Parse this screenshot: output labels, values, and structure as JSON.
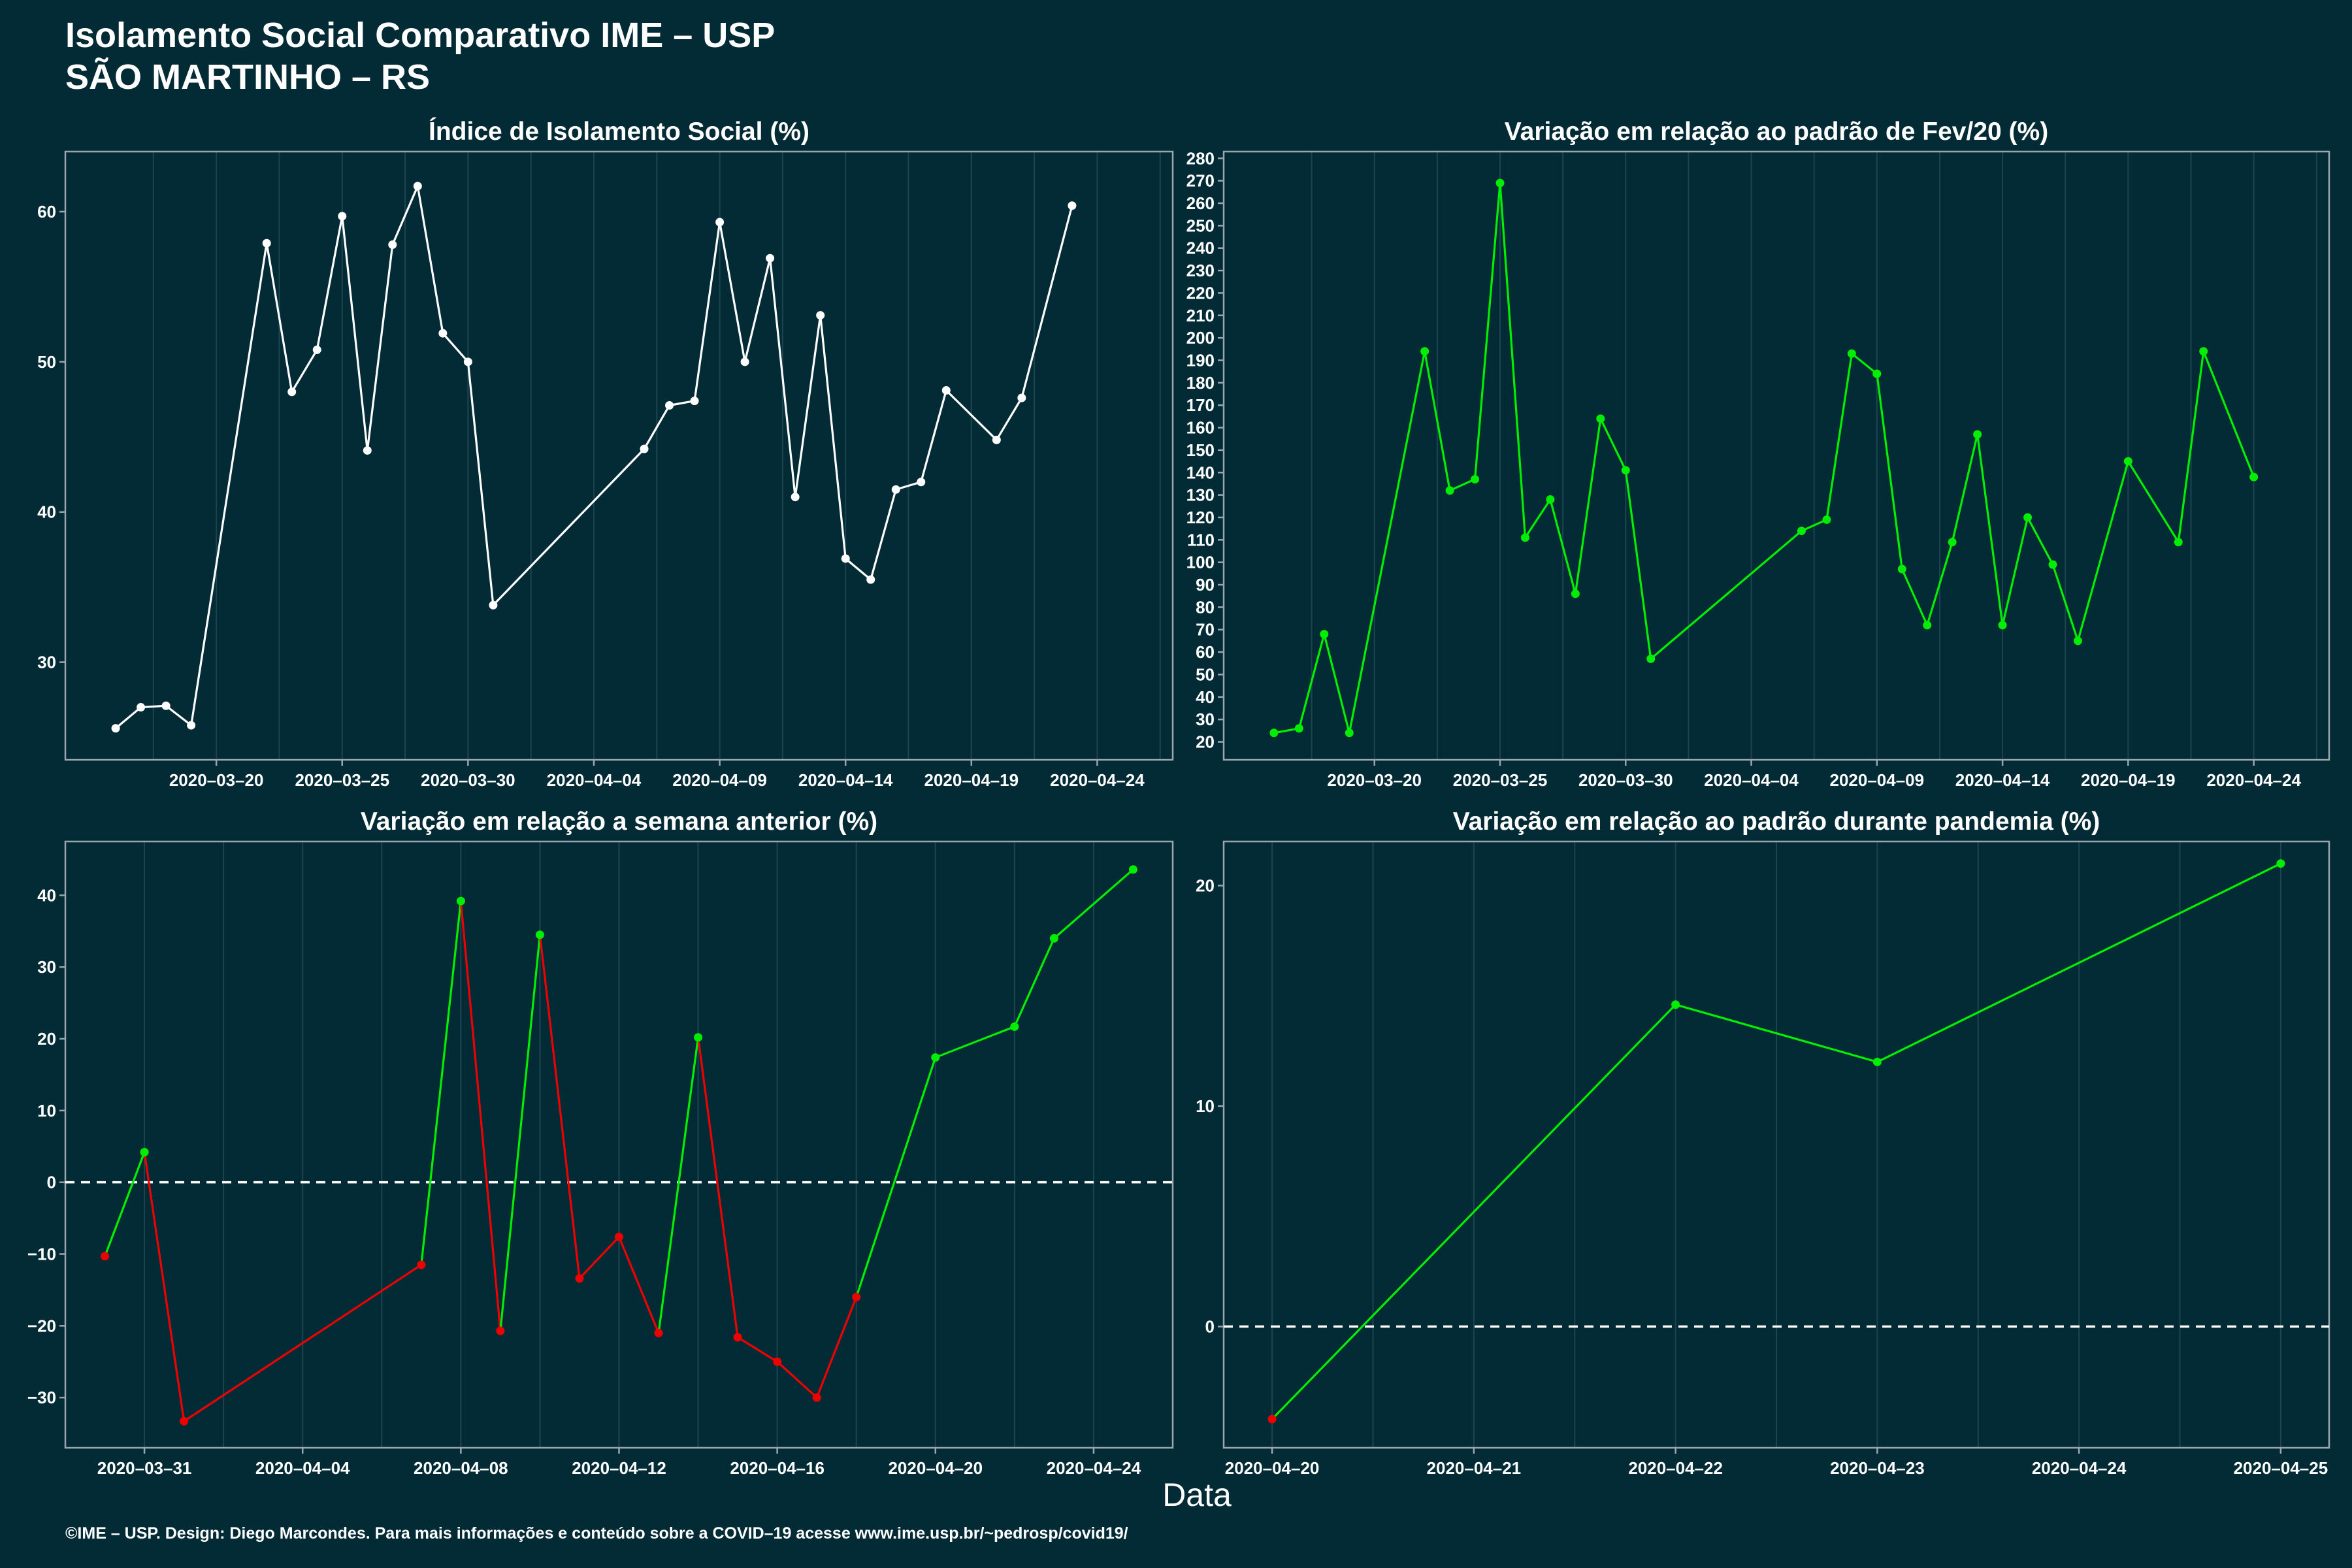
{
  "header": {
    "title_line1": "Isolamento Social Comparativo IME – USP",
    "title_line2": "SÃO MARTINHO – RS"
  },
  "xlabel": "Data",
  "footer": "©IME – USP. Design: Diego Marcondes. Para mais informações e conteúdo sobre a COVID–19 acesse www.ime.usp.br/~pedrosp/covid19/",
  "colors": {
    "background": "#022b36",
    "white": "#ffffff",
    "green": "#00ee00",
    "red": "#ee0000"
  },
  "chart_data": [
    {
      "type": "line",
      "title": "Índice de Isolamento Social (%)",
      "xlim": [
        "2020-03-14",
        "2020-04-27"
      ],
      "ylim": [
        23.5,
        64
      ],
      "yticks": [
        30,
        40,
        50,
        60
      ],
      "xticks": [
        "2020-03-20",
        "2020-03-25",
        "2020-03-30",
        "2020-04-04",
        "2020-04-09",
        "2020-04-14",
        "2020-04-19",
        "2020-04-24"
      ],
      "zero_line": false,
      "points": [
        {
          "x": "2020-03-16",
          "y": 25.6,
          "c": "white"
        },
        {
          "x": "2020-03-17",
          "y": 27.0,
          "c": "white"
        },
        {
          "x": "2020-03-18",
          "y": 27.1,
          "c": "white"
        },
        {
          "x": "2020-03-19",
          "y": 25.8,
          "c": "white"
        },
        {
          "x": "2020-03-22",
          "y": 57.9,
          "c": "white"
        },
        {
          "x": "2020-03-23",
          "y": 48.0,
          "c": "white"
        },
        {
          "x": "2020-03-24",
          "y": 50.8,
          "c": "white"
        },
        {
          "x": "2020-03-25",
          "y": 59.7,
          "c": "white"
        },
        {
          "x": "2020-03-26",
          "y": 44.1,
          "c": "white"
        },
        {
          "x": "2020-03-27",
          "y": 57.8,
          "c": "white"
        },
        {
          "x": "2020-03-28",
          "y": 61.7,
          "c": "white"
        },
        {
          "x": "2020-03-29",
          "y": 51.9,
          "c": "white"
        },
        {
          "x": "2020-03-30",
          "y": 50.0,
          "c": "white"
        },
        {
          "x": "2020-03-31",
          "y": 33.8,
          "c": "white"
        },
        {
          "x": "2020-04-06",
          "y": 44.2,
          "c": "white"
        },
        {
          "x": "2020-04-07",
          "y": 47.1,
          "c": "white"
        },
        {
          "x": "2020-04-08",
          "y": 47.4,
          "c": "white"
        },
        {
          "x": "2020-04-09",
          "y": 59.3,
          "c": "white"
        },
        {
          "x": "2020-04-10",
          "y": 50.0,
          "c": "white"
        },
        {
          "x": "2020-04-11",
          "y": 56.9,
          "c": "white"
        },
        {
          "x": "2020-04-12",
          "y": 41.0,
          "c": "white"
        },
        {
          "x": "2020-04-13",
          "y": 53.1,
          "c": "white"
        },
        {
          "x": "2020-04-14",
          "y": 36.9,
          "c": "white"
        },
        {
          "x": "2020-04-15",
          "y": 35.5,
          "c": "white"
        },
        {
          "x": "2020-04-16",
          "y": 41.5,
          "c": "white"
        },
        {
          "x": "2020-04-17",
          "y": 42.0,
          "c": "white"
        },
        {
          "x": "2020-04-18",
          "y": 48.1,
          "c": "white"
        },
        {
          "x": "2020-04-20",
          "y": 44.8,
          "c": "white"
        },
        {
          "x": "2020-04-21",
          "y": 47.6,
          "c": "white"
        },
        {
          "x": "2020-04-23",
          "y": 60.4,
          "c": "white"
        }
      ]
    },
    {
      "type": "line",
      "title": "Variação em relação ao padrão de Fev/20 (%)",
      "xlim": [
        "2020-03-14",
        "2020-04-27"
      ],
      "ylim": [
        12,
        283
      ],
      "yticks": [
        20,
        30,
        40,
        50,
        60,
        70,
        80,
        90,
        100,
        110,
        120,
        130,
        140,
        150,
        160,
        170,
        180,
        190,
        200,
        210,
        220,
        230,
        240,
        250,
        260,
        270,
        280
      ],
      "xticks": [
        "2020-03-20",
        "2020-03-25",
        "2020-03-30",
        "2020-04-04",
        "2020-04-09",
        "2020-04-14",
        "2020-04-19",
        "2020-04-24"
      ],
      "zero_line": false,
      "points": [
        {
          "x": "2020-03-16",
          "y": 24,
          "c": "green"
        },
        {
          "x": "2020-03-17",
          "y": 26,
          "c": "green"
        },
        {
          "x": "2020-03-18",
          "y": 68,
          "c": "green"
        },
        {
          "x": "2020-03-19",
          "y": 24,
          "c": "green"
        },
        {
          "x": "2020-03-22",
          "y": 194,
          "c": "green"
        },
        {
          "x": "2020-03-23",
          "y": 132,
          "c": "green"
        },
        {
          "x": "2020-03-24",
          "y": 137,
          "c": "green"
        },
        {
          "x": "2020-03-25",
          "y": 269,
          "c": "green"
        },
        {
          "x": "2020-03-26",
          "y": 111,
          "c": "green"
        },
        {
          "x": "2020-03-27",
          "y": 128,
          "c": "green"
        },
        {
          "x": "2020-03-28",
          "y": 86,
          "c": "green"
        },
        {
          "x": "2020-03-29",
          "y": 164,
          "c": "green"
        },
        {
          "x": "2020-03-30",
          "y": 141,
          "c": "green"
        },
        {
          "x": "2020-03-31",
          "y": 57,
          "c": "green"
        },
        {
          "x": "2020-04-06",
          "y": 114,
          "c": "green"
        },
        {
          "x": "2020-04-07",
          "y": 119,
          "c": "green"
        },
        {
          "x": "2020-04-08",
          "y": 193,
          "c": "green"
        },
        {
          "x": "2020-04-09",
          "y": 184,
          "c": "green"
        },
        {
          "x": "2020-04-10",
          "y": 97,
          "c": "green"
        },
        {
          "x": "2020-04-11",
          "y": 72,
          "c": "green"
        },
        {
          "x": "2020-04-12",
          "y": 109,
          "c": "green"
        },
        {
          "x": "2020-04-13",
          "y": 157,
          "c": "green"
        },
        {
          "x": "2020-04-14",
          "y": 72,
          "c": "green"
        },
        {
          "x": "2020-04-15",
          "y": 120,
          "c": "green"
        },
        {
          "x": "2020-04-16",
          "y": 99,
          "c": "green"
        },
        {
          "x": "2020-04-17",
          "y": 65,
          "c": "green"
        },
        {
          "x": "2020-04-19",
          "y": 145,
          "c": "green"
        },
        {
          "x": "2020-04-21",
          "y": 109,
          "c": "green"
        },
        {
          "x": "2020-04-22",
          "y": 194,
          "c": "green"
        },
        {
          "x": "2020-04-24",
          "y": 138,
          "c": "green"
        }
      ]
    },
    {
      "type": "line",
      "title": "Variação em relação a semana anterior (%)",
      "xlim": [
        "2020-03-29",
        "2020-04-26"
      ],
      "ylim": [
        -37,
        47.5
      ],
      "yticks": [
        -30,
        -20,
        -10,
        0,
        10,
        20,
        30,
        40
      ],
      "xticks": [
        "2020-03-31",
        "2020-04-04",
        "2020-04-08",
        "2020-04-12",
        "2020-04-16",
        "2020-04-20",
        "2020-04-24"
      ],
      "zero_line": true,
      "points": [
        {
          "x": "2020-03-30",
          "y": -10.3,
          "c": "red"
        },
        {
          "x": "2020-03-31",
          "y": 4.2,
          "c": "green"
        },
        {
          "x": "2020-04-01",
          "y": -33.3,
          "c": "red"
        },
        {
          "x": "2020-04-07",
          "y": -11.5,
          "c": "red"
        },
        {
          "x": "2020-04-08",
          "y": 39.2,
          "c": "green"
        },
        {
          "x": "2020-04-09",
          "y": -20.7,
          "c": "red"
        },
        {
          "x": "2020-04-10",
          "y": 34.5,
          "c": "green"
        },
        {
          "x": "2020-04-11",
          "y": -13.4,
          "c": "red"
        },
        {
          "x": "2020-04-12",
          "y": -7.6,
          "c": "red"
        },
        {
          "x": "2020-04-13",
          "y": -21.0,
          "c": "red"
        },
        {
          "x": "2020-04-14",
          "y": 20.2,
          "c": "green"
        },
        {
          "x": "2020-04-15",
          "y": -21.6,
          "c": "red"
        },
        {
          "x": "2020-04-16",
          "y": -25.0,
          "c": "red"
        },
        {
          "x": "2020-04-17",
          "y": -30.0,
          "c": "red"
        },
        {
          "x": "2020-04-18",
          "y": -16.0,
          "c": "red"
        },
        {
          "x": "2020-04-20",
          "y": 17.4,
          "c": "green"
        },
        {
          "x": "2020-04-22",
          "y": 21.7,
          "c": "green"
        },
        {
          "x": "2020-04-23",
          "y": 34.0,
          "c": "green"
        },
        {
          "x": "2020-04-25",
          "y": 43.6,
          "c": "green"
        }
      ]
    },
    {
      "type": "line",
      "title": "Variação em relação ao padrão durante pandemia (%)",
      "xlim": [
        "2020-04-19.76",
        "2020-04-25.24"
      ],
      "ylim": [
        -5.5,
        22
      ],
      "yticks": [
        0,
        10,
        20
      ],
      "xticks": [
        "2020-04-20",
        "2020-04-21",
        "2020-04-22",
        "2020-04-23",
        "2020-04-24",
        "2020-04-25"
      ],
      "zero_line": true,
      "points": [
        {
          "x": "2020-04-20",
          "y": -4.2,
          "c": "red"
        },
        {
          "x": "2020-04-22",
          "y": 14.6,
          "c": "green"
        },
        {
          "x": "2020-04-23",
          "y": 12.0,
          "c": "green"
        },
        {
          "x": "2020-04-25",
          "y": 21.0,
          "c": "green"
        }
      ]
    }
  ]
}
